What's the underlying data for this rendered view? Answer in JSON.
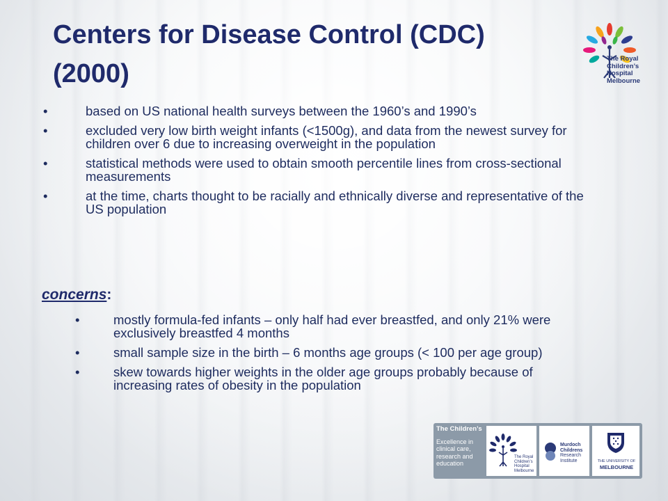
{
  "slide": {
    "title": "Centers for Disease Control (CDC) (2000)",
    "bullet_char": "•",
    "bullets": [
      "based on US national health surveys between the 1960’s and 1990’s",
      "excluded very low birth weight infants (<1500g), and data from the newest survey for children over 6 due to increasing overweight in the population",
      "statistical methods were used to obtain smooth percentile lines from cross-sectional measurements",
      "at the time, charts thought to be racially and ethnically diverse and representative of the US population"
    ],
    "concerns_heading": "concerns",
    "concerns_colon": ":",
    "concerns": [
      "mostly formula-fed infants – only half had ever breastfed, and only 21% were exclusively breastfed 4 months",
      "small sample size in the birth – 6 months age groups (< 100 per age group)",
      "skew towards higher weights in the older age groups probably because of increasing rates of obesity in the population"
    ]
  },
  "logo_top": {
    "line1": "The Royal",
    "line2": "Children’s",
    "line3": "Hospital",
    "line4": "Melbourne"
  },
  "footer": {
    "heading": "The Children’s",
    "line1": "Excellence in",
    "line2": "clinical care,",
    "line3": "research and",
    "line4": "education",
    "rch1": "The Royal",
    "rch2": "Children’s",
    "rch3": "Hospital",
    "rch4": "Melbourne",
    "mcri1": "Murdoch",
    "mcri2": "Childrens",
    "mcri3": "Research",
    "mcri4": "Institute",
    "uni1": "THE UNIVERSITY OF",
    "uni2": "MELBOURNE"
  },
  "colors": {
    "title": "#1f2a6b",
    "text": "#1d2b5e",
    "footer_bg": "#8c9aa8"
  }
}
